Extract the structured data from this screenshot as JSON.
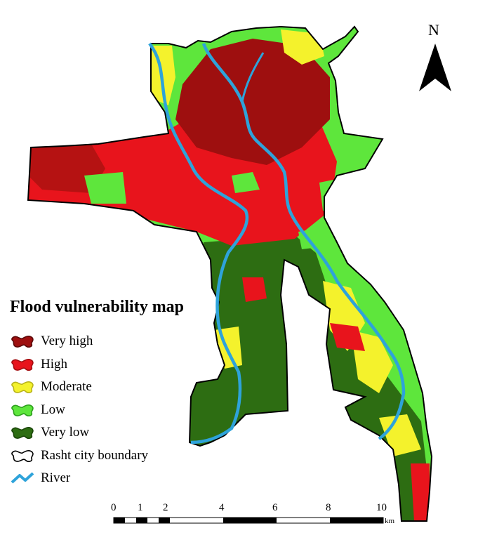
{
  "north_arrow": {
    "letter": "N"
  },
  "legend": {
    "title": "Flood vulnerability map",
    "items": [
      {
        "label": "Very high",
        "color": "#9e0f0f",
        "stroke": "#5a0606",
        "shape": "blob"
      },
      {
        "label": "High",
        "color": "#e8141c",
        "stroke": "#a30d10",
        "shape": "blob"
      },
      {
        "label": "Moderate",
        "color": "#f4f22c",
        "stroke": "#b8b31a",
        "shape": "blob"
      },
      {
        "label": "Low",
        "color": "#5ee63c",
        "stroke": "#2c9f1c",
        "shape": "blob"
      },
      {
        "label": "Very low",
        "color": "#2d6d12",
        "stroke": "#1a4508",
        "shape": "blob"
      },
      {
        "label": "Rasht city boundary",
        "color": "#ffffff",
        "stroke": "#000000",
        "shape": "outline"
      },
      {
        "label": "River",
        "color": "#2ea3da",
        "stroke": "#2ea3da",
        "shape": "line"
      }
    ]
  },
  "scale_bar": {
    "ticks": [
      "0",
      "1",
      "2",
      "4",
      "6",
      "8",
      "10"
    ],
    "unit": "km"
  },
  "colors": {
    "very_high": "#9e0f0f",
    "high": "#e8141c",
    "moderate": "#f4f22c",
    "low": "#5ee63c",
    "very_low": "#2d6d12",
    "river": "#2ea3da",
    "boundary": "#000000"
  }
}
